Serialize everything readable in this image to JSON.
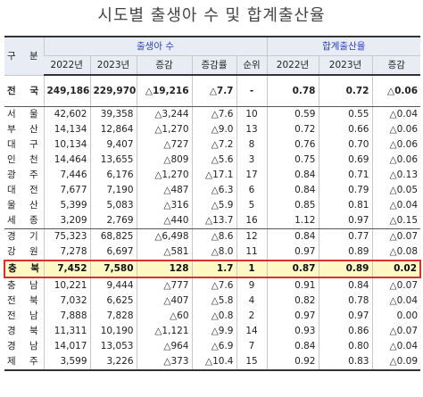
{
  "title": "시도별 출생아 수 및 합계출산율",
  "header": {
    "gubun": "구 분",
    "birth_group": "출생아 수",
    "tfr_group": "합계출산율",
    "cols": [
      "2022년",
      "2023년",
      "증감",
      "증감률",
      "순위",
      "2022년",
      "2023년",
      "증감"
    ]
  },
  "total": {
    "region": "전 국",
    "b2022": "249,186",
    "b2023": "229,970",
    "diff": "△19,216",
    "rate": "△7.7",
    "rank": "-",
    "t2022": "0.78",
    "t2023": "0.72",
    "tdiff": "△0.06"
  },
  "rows": [
    {
      "region": "서 울",
      "b2022": "42,602",
      "b2023": "39,358",
      "diff": "△3,244",
      "rate": "△7.6",
      "rank": "10",
      "t2022": "0.59",
      "t2023": "0.55",
      "tdiff": "△0.04"
    },
    {
      "region": "부 산",
      "b2022": "14,134",
      "b2023": "12,864",
      "diff": "△1,270",
      "rate": "△9.0",
      "rank": "13",
      "t2022": "0.72",
      "t2023": "0.66",
      "tdiff": "△0.06"
    },
    {
      "region": "대 구",
      "b2022": "10,134",
      "b2023": "9,407",
      "diff": "△727",
      "rate": "△7.2",
      "rank": "8",
      "t2022": "0.76",
      "t2023": "0.70",
      "tdiff": "△0.06"
    },
    {
      "region": "인 천",
      "b2022": "14,464",
      "b2023": "13,655",
      "diff": "△809",
      "rate": "△5.6",
      "rank": "3",
      "t2022": "0.75",
      "t2023": "0.69",
      "tdiff": "△0.06"
    },
    {
      "region": "광 주",
      "b2022": "7,446",
      "b2023": "6,176",
      "diff": "△1,270",
      "rate": "△17.1",
      "rank": "17",
      "t2022": "0.84",
      "t2023": "0.71",
      "tdiff": "△0.13"
    },
    {
      "region": "대 전",
      "b2022": "7,677",
      "b2023": "7,190",
      "diff": "△487",
      "rate": "△6.3",
      "rank": "6",
      "t2022": "0.84",
      "t2023": "0.79",
      "tdiff": "△0.05"
    },
    {
      "region": "울 산",
      "b2022": "5,399",
      "b2023": "5,083",
      "diff": "△316",
      "rate": "△5.9",
      "rank": "5",
      "t2022": "0.85",
      "t2023": "0.81",
      "tdiff": "△0.04"
    },
    {
      "region": "세 종",
      "b2022": "3,209",
      "b2023": "2,769",
      "diff": "△440",
      "rate": "△13.7",
      "rank": "16",
      "t2022": "1.12",
      "t2023": "0.97",
      "tdiff": "△0.15"
    },
    {
      "region": "경 기",
      "b2022": "75,323",
      "b2023": "68,825",
      "diff": "△6,498",
      "rate": "△8.6",
      "rank": "12",
      "t2022": "0.84",
      "t2023": "0.77",
      "tdiff": "△0.07"
    },
    {
      "region": "강 원",
      "b2022": "7,278",
      "b2023": "6,697",
      "diff": "△581",
      "rate": "△8.0",
      "rank": "11",
      "t2022": "0.97",
      "t2023": "0.89",
      "tdiff": "△0.08"
    },
    {
      "region": "충 북",
      "b2022": "7,452",
      "b2023": "7,580",
      "diff": "128",
      "rate": "1.7",
      "rank": "1",
      "t2022": "0.87",
      "t2023": "0.89",
      "tdiff": "0.02"
    },
    {
      "region": "충 남",
      "b2022": "10,221",
      "b2023": "9,444",
      "diff": "△777",
      "rate": "△7.6",
      "rank": "9",
      "t2022": "0.91",
      "t2023": "0.84",
      "tdiff": "△0.07"
    },
    {
      "region": "전 북",
      "b2022": "7,032",
      "b2023": "6,625",
      "diff": "△407",
      "rate": "△5.8",
      "rank": "4",
      "t2022": "0.82",
      "t2023": "0.78",
      "tdiff": "△0.04"
    },
    {
      "region": "전 남",
      "b2022": "7,888",
      "b2023": "7,828",
      "diff": "△60",
      "rate": "△0.8",
      "rank": "2",
      "t2022": "0.97",
      "t2023": "0.97",
      "tdiff": "0.00"
    },
    {
      "region": "경 북",
      "b2022": "11,311",
      "b2023": "10,190",
      "diff": "△1,121",
      "rate": "△9.9",
      "rank": "14",
      "t2022": "0.93",
      "t2023": "0.86",
      "tdiff": "△0.07"
    },
    {
      "region": "경 남",
      "b2022": "14,017",
      "b2023": "13,053",
      "diff": "△964",
      "rate": "△6.9",
      "rank": "7",
      "t2022": "0.84",
      "t2023": "0.80",
      "tdiff": "△0.04"
    },
    {
      "region": "제 주",
      "b2022": "3,599",
      "b2023": "3,226",
      "diff": "△373",
      "rate": "△10.4",
      "rank": "15",
      "t2022": "0.92",
      "t2023": "0.83",
      "tdiff": "△0.09"
    }
  ]
}
